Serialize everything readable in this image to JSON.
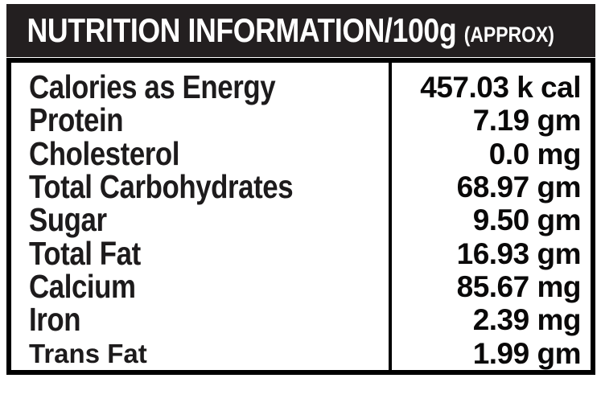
{
  "header": {
    "title": "NUTRITION INFORMATION/100g",
    "suffix": "(APPROX)"
  },
  "table": {
    "rows": [
      {
        "label": "Calories as Energy",
        "value": "457.03 k cal"
      },
      {
        "label": "Protein",
        "value": "7.19 gm"
      },
      {
        "label": "Cholesterol",
        "value": "0.0 mg"
      },
      {
        "label": "Total Carbohydrates",
        "value": "68.97 gm"
      },
      {
        "label": "Sugar",
        "value": "9.50 gm"
      },
      {
        "label": "Total Fat",
        "value": "16.93 gm"
      },
      {
        "label": "Calcium",
        "value": "85.67 mg"
      },
      {
        "label": "Iron",
        "value": "2.39 mg"
      },
      {
        "label": "Trans Fat",
        "value": "1.99 gm"
      }
    ]
  },
  "colors": {
    "header_bg": "#231f20",
    "header_text": "#ffffff",
    "label_text": "#1d1b1c",
    "value_text": "#0a0909",
    "border": "#000000",
    "page_bg": "#ffffff"
  }
}
